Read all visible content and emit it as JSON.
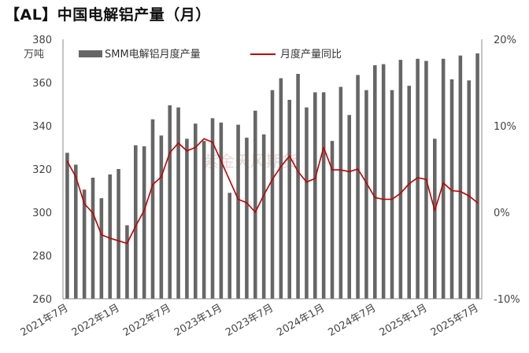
{
  "title": "【AL】中国电解铝产量（月）",
  "watermark": "紫金天风期货",
  "chart_data": {
    "type": "bar+line",
    "title": "【AL】中国电解铝产量（月）",
    "y_left": {
      "unit": "万吨",
      "lim": [
        260,
        380
      ],
      "ticks": [
        260,
        280,
        300,
        320,
        340,
        360,
        380
      ]
    },
    "y_right": {
      "lim": [
        -10,
        20
      ],
      "ticks": [
        "-10%",
        "0%",
        "10%",
        "20%"
      ],
      "tick_values": [
        -10,
        0,
        10,
        20
      ]
    },
    "x_ticks": [
      "2021年7月",
      "2022年1月",
      "2022年7月",
      "2023年1月",
      "2023年7月",
      "2024年1月",
      "2024年7月",
      "2025年1月",
      "2025年7月"
    ],
    "x": [
      "2021-07",
      "2021-08",
      "2021-09",
      "2021-10",
      "2021-11",
      "2021-12",
      "2022-01",
      "2022-02",
      "2022-03",
      "2022-04",
      "2022-05",
      "2022-06",
      "2022-07",
      "2022-08",
      "2022-09",
      "2022-10",
      "2022-11",
      "2022-12",
      "2023-01",
      "2023-02",
      "2023-03",
      "2023-04",
      "2023-05",
      "2023-06",
      "2023-07",
      "2023-08",
      "2023-09",
      "2023-10",
      "2023-11",
      "2023-12",
      "2024-01",
      "2024-02",
      "2024-03",
      "2024-04",
      "2024-05",
      "2024-06",
      "2024-07",
      "2024-08",
      "2024-09",
      "2024-10",
      "2024-11",
      "2024-12",
      "2025-01",
      "2025-02",
      "2025-03",
      "2025-04",
      "2025-05",
      "2025-06",
      "2025-07"
    ],
    "series": [
      {
        "name": "SMM电解铝月度产量",
        "type": "bar",
        "axis": "left",
        "color": "#666666",
        "values": [
          327.5,
          322,
          310.5,
          316,
          306.5,
          317.5,
          320,
          294,
          331,
          330.5,
          343,
          335.5,
          349.5,
          348.5,
          334,
          341,
          333,
          343.5,
          341.5,
          309,
          340.5,
          334.5,
          347,
          336,
          356.5,
          362,
          352,
          364,
          348.5,
          355.5,
          355.5,
          333,
          358,
          345,
          363.5,
          356.5,
          368,
          368.5,
          356.5,
          370.5,
          358.5,
          371,
          370,
          334,
          371,
          361.5,
          372.5,
          361,
          373.5
        ]
      },
      {
        "name": "月度产量同比",
        "type": "line",
        "axis": "right",
        "color": "#c00000",
        "values": [
          5.9,
          4.1,
          1,
          -0.1,
          -2.6,
          -3,
          -3.3,
          -3.6,
          -1.6,
          0.2,
          3.2,
          4.1,
          6.9,
          8,
          7.1,
          7.5,
          8.5,
          8.1,
          5.9,
          3.7,
          1.5,
          1.1,
          0,
          2,
          3.8,
          5.3,
          6.5,
          4.7,
          3.5,
          3.9,
          7.5,
          4.9,
          4.9,
          4.7,
          5,
          3.4,
          1.7,
          1.5,
          1.5,
          2.2,
          3.3,
          4,
          3.8,
          0.2,
          3.4,
          2.5,
          2.4,
          1.9,
          1.1
        ]
      }
    ],
    "legend": {
      "position": "top"
    }
  }
}
